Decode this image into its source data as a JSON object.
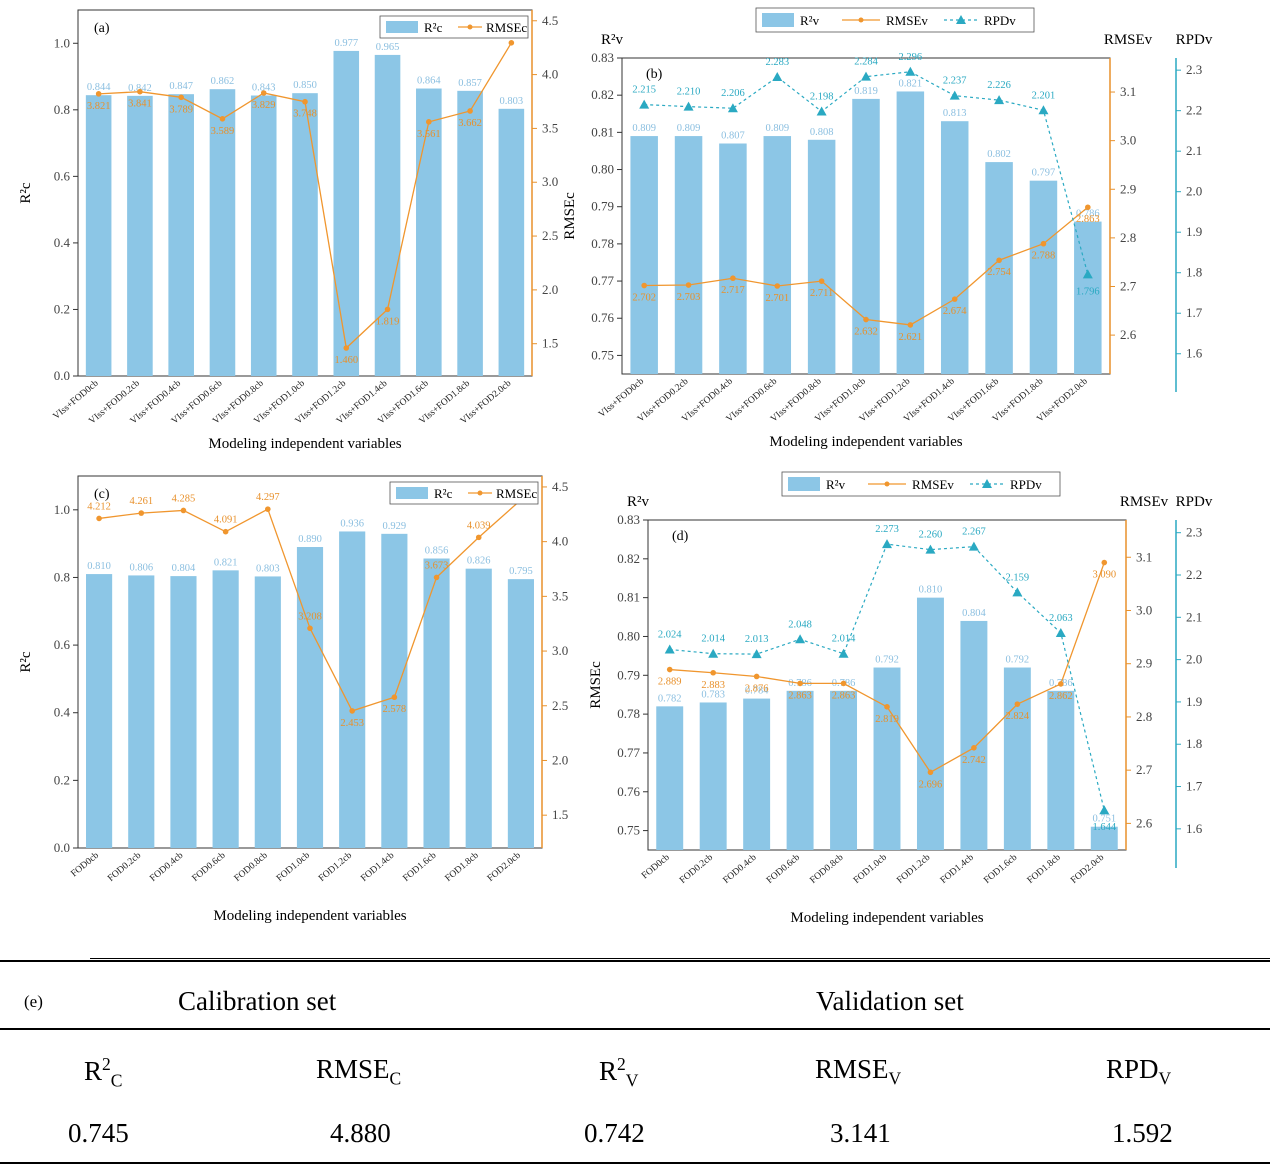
{
  "colors": {
    "bar": "#8cc6e6",
    "rmse": "#f0962e",
    "rpd": "#2aa9c2",
    "axis_rmse": "#e8912c",
    "axis_rpd": "#2aa9c2"
  },
  "chart_data": [
    {
      "panel": "(a)",
      "type": "bar+line",
      "categories": [
        "VIss+FOD0cb",
        "VIss+FOD0.2cb",
        "VIss+FOD0.4cb",
        "VIss+FOD0.6cb",
        "VIss+FOD0.8cb",
        "VIss+FOD1.0cb",
        "VIss+FOD1.2cb",
        "VIss+FOD1.4cb",
        "VIss+FOD1.6cb",
        "VIss+FOD1.8cb",
        "VIss+FOD2.0cb"
      ],
      "xlabel": "Modeling independent variables",
      "ylabel": "R²c",
      "y2label": "",
      "ylim": [
        0,
        1.1
      ],
      "y2lim": [
        1.2,
        4.6
      ],
      "yticks": [
        0.0,
        0.2,
        0.4,
        0.6,
        0.8,
        1.0
      ],
      "y2ticks": [
        1.5,
        2.0,
        2.5,
        3.0,
        3.5,
        4.0,
        4.5
      ],
      "series": [
        {
          "name": "R²c",
          "kind": "bar",
          "axis": "left",
          "values": [
            0.844,
            0.842,
            0.847,
            0.862,
            0.843,
            0.85,
            0.977,
            0.965,
            0.864,
            0.857,
            0.803
          ]
        },
        {
          "name": "RMSEc",
          "kind": "line",
          "axis": "right",
          "values": [
            3.821,
            3.841,
            3.789,
            3.589,
            3.829,
            3.748,
            1.46,
            1.819,
            3.561,
            3.662,
            4.295
          ]
        }
      ],
      "legend": "top-right"
    },
    {
      "panel": "(b)",
      "type": "bar+line",
      "categories": [
        "VIss+FOD0cb",
        "VIss+FOD0.2cb",
        "VIss+FOD0.4cb",
        "VIss+FOD0.6cb",
        "VIss+FOD0.8cb",
        "VIss+FOD1.0cb",
        "VIss+FOD1.2cb",
        "VIss+FOD1.4cb",
        "VIss+FOD1.6cb",
        "VIss+FOD1.8cb",
        "VIss+FOD2.0cb"
      ],
      "xlabel": "Modeling independent variables",
      "ylabel": "RMSEc",
      "ylabel_top": "R²v",
      "y2label": "RMSEv",
      "y3label": "RPDv",
      "ylim": [
        0.745,
        0.83
      ],
      "y2lim": [
        2.52,
        3.17
      ],
      "y3lim": [
        1.55,
        2.33
      ],
      "yticks": [
        0.75,
        0.76,
        0.77,
        0.78,
        0.79,
        0.8,
        0.81,
        0.82,
        0.83
      ],
      "y2ticks": [
        2.6,
        2.7,
        2.8,
        2.9,
        3.0,
        3.1
      ],
      "y3ticks": [
        1.6,
        1.7,
        1.8,
        1.9,
        2.0,
        2.1,
        2.2,
        2.3
      ],
      "series": [
        {
          "name": "R²v",
          "kind": "bar",
          "axis": "left",
          "values": [
            0.809,
            0.809,
            0.807,
            0.809,
            0.808,
            0.819,
            0.821,
            0.813,
            0.802,
            0.797,
            0.786
          ]
        },
        {
          "name": "RMSEv",
          "kind": "line",
          "axis": "right",
          "values": [
            2.702,
            2.703,
            2.717,
            2.701,
            2.711,
            2.632,
            2.621,
            2.674,
            2.754,
            2.788,
            2.863
          ]
        },
        {
          "name": "RPDv",
          "kind": "dashed",
          "axis": "right2",
          "values": [
            2.215,
            2.21,
            2.206,
            2.283,
            2.198,
            2.284,
            2.296,
            2.237,
            2.226,
            2.201,
            1.796
          ]
        }
      ],
      "legend": "top"
    },
    {
      "panel": "(c)",
      "type": "bar+line",
      "categories": [
        "FOD0cb",
        "FOD0.2cb",
        "FOD0.4cb",
        "FOD0.6cb",
        "FOD0.8cb",
        "FOD1.0cb",
        "FOD1.2cb",
        "FOD1.4cb",
        "FOD1.6cb",
        "FOD1.8cb",
        "FOD2.0cb"
      ],
      "xlabel": "Modeling independent variables",
      "ylabel": "R²c",
      "y2label": "",
      "ylim": [
        0,
        1.1
      ],
      "y2lim": [
        1.2,
        4.6
      ],
      "yticks": [
        0.0,
        0.2,
        0.4,
        0.6,
        0.8,
        1.0
      ],
      "y2ticks": [
        1.5,
        2.0,
        2.5,
        3.0,
        3.5,
        4.0,
        4.5
      ],
      "series": [
        {
          "name": "R²c",
          "kind": "bar",
          "axis": "left",
          "values": [
            0.81,
            0.806,
            0.804,
            0.821,
            0.803,
            0.89,
            0.936,
            0.929,
            0.856,
            0.826,
            0.795
          ]
        },
        {
          "name": "RMSEc",
          "kind": "line",
          "axis": "right",
          "values": [
            4.212,
            4.261,
            4.285,
            4.091,
            4.297,
            3.208,
            2.453,
            2.578,
            3.673,
            4.039,
            4.382
          ]
        }
      ],
      "legend": "top-right"
    },
    {
      "panel": "(d)",
      "type": "bar+line",
      "categories": [
        "FOD0cb",
        "FOD0.2cb",
        "FOD0.4cb",
        "FOD0.6cb",
        "FOD0.8cb",
        "FOD1.0cb",
        "FOD1.2cb",
        "FOD1.4cb",
        "FOD1.6cb",
        "FOD1.8cb",
        "FOD2.0cb"
      ],
      "xlabel": "Modeling independent variables",
      "ylabel": "RMSEc",
      "ylabel_top": "R²v",
      "y2label": "RMSEv",
      "y3label": "RPDv",
      "ylim": [
        0.745,
        0.83
      ],
      "y2lim": [
        2.55,
        3.17
      ],
      "y3lim": [
        1.55,
        2.33
      ],
      "yticks": [
        0.75,
        0.76,
        0.77,
        0.78,
        0.79,
        0.8,
        0.81,
        0.82,
        0.83
      ],
      "y2ticks": [
        2.6,
        2.7,
        2.8,
        2.9,
        3.0,
        3.1
      ],
      "y3ticks": [
        1.6,
        1.7,
        1.8,
        1.9,
        2.0,
        2.1,
        2.2,
        2.3
      ],
      "series": [
        {
          "name": "R²v",
          "kind": "bar",
          "axis": "left",
          "values": [
            0.782,
            0.783,
            0.784,
            0.786,
            0.786,
            0.792,
            0.81,
            0.804,
            0.792,
            0.786,
            0.751
          ]
        },
        {
          "name": "RMSEv",
          "kind": "line",
          "axis": "right",
          "values": [
            2.889,
            2.883,
            2.876,
            2.863,
            2.863,
            2.819,
            2.696,
            2.742,
            2.824,
            2.862,
            3.09
          ]
        },
        {
          "name": "RPDv",
          "kind": "dashed",
          "axis": "right2",
          "values": [
            2.024,
            2.014,
            2.013,
            2.048,
            2.014,
            2.273,
            2.26,
            2.267,
            2.159,
            2.063,
            1.644
          ]
        }
      ],
      "legend": "top"
    },
    {
      "panel": "(e)",
      "type": "table",
      "groups": [
        "Calibration set",
        "Validation set"
      ],
      "columns": [
        "R²C",
        "RMSEC",
        "R²V",
        "RMSEV",
        "RPDV"
      ],
      "rows": [
        [
          "0.745",
          "4.880",
          "0.742",
          "3.141",
          "1.592"
        ]
      ]
    }
  ],
  "table": {
    "tag": "(e)",
    "group_calibration": "Calibration set",
    "group_validation": "Validation set",
    "headers": [
      {
        "base": "R",
        "sup": "2",
        "sub": "C"
      },
      {
        "base": "RMSE",
        "sup": "",
        "sub": "C"
      },
      {
        "base": "R",
        "sup": "2",
        "sub": "V"
      },
      {
        "base": "RMSE",
        "sup": "",
        "sub": "V"
      },
      {
        "base": "RPD",
        "sup": "",
        "sub": "V"
      }
    ],
    "values": [
      "0.745",
      "4.880",
      "0.742",
      "3.141",
      "1.592"
    ]
  }
}
